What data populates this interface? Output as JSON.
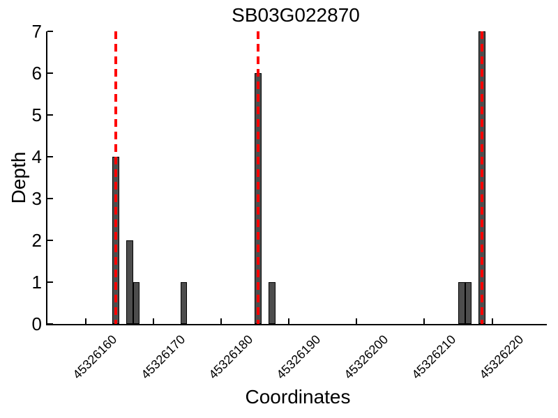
{
  "chart_data": {
    "type": "bar",
    "title": "SB03G022870",
    "xlabel": "Coordinates",
    "ylabel": "Depth",
    "ylim": [
      0,
      7
    ],
    "yticks": [
      0,
      1,
      2,
      3,
      4,
      5,
      6,
      7
    ],
    "xticks": [
      45326160,
      45326170,
      45326180,
      45326190,
      45326200,
      45326210,
      45326220
    ],
    "xlim": [
      45326154,
      45326228
    ],
    "grid": false,
    "legend": "none",
    "bar_unit_width": 1,
    "bars": [
      {
        "coordinate": 45326164,
        "depth": 4
      },
      {
        "coordinate": 45326166,
        "depth": 2
      },
      {
        "coordinate": 45326167,
        "depth": 1
      },
      {
        "coordinate": 45326174,
        "depth": 1
      },
      {
        "coordinate": 45326185,
        "depth": 6
      },
      {
        "coordinate": 45326187,
        "depth": 1
      },
      {
        "coordinate": 45326215,
        "depth": 1
      },
      {
        "coordinate": 45326216,
        "depth": 1
      },
      {
        "coordinate": 45326218,
        "depth": 7
      }
    ],
    "marker_lines": {
      "style": "dashed",
      "color": "#ff0000",
      "positions": [
        45326164,
        45326185,
        45326218
      ]
    },
    "colors": {
      "bar_fill": "#4d4d4d",
      "bar_edge": "#000000",
      "axis": "#000000",
      "background": "#ffffff"
    }
  }
}
